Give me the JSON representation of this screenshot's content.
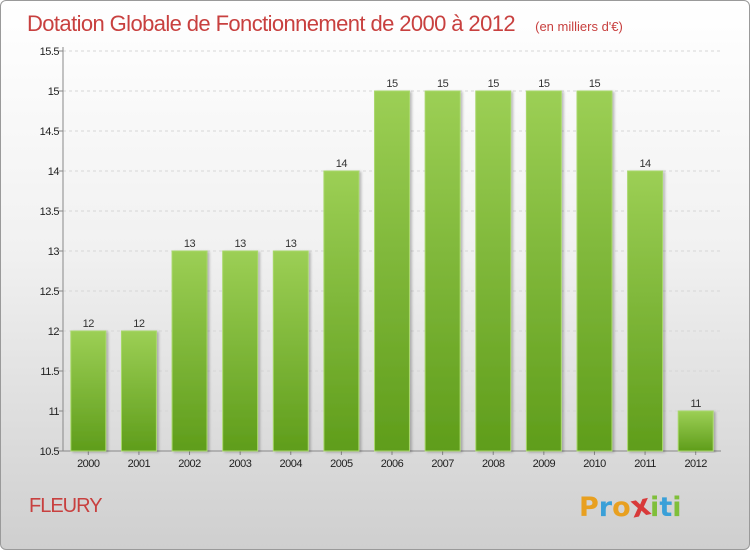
{
  "chart_data": {
    "type": "bar",
    "title": "Dotation Globale de Fonctionnement de 2000 à 2012",
    "subtitle": "(en milliers d'€)",
    "categories": [
      "2000",
      "2001",
      "2002",
      "2003",
      "2004",
      "2005",
      "2006",
      "2007",
      "2008",
      "2009",
      "2010",
      "2011",
      "2012"
    ],
    "values": [
      12,
      12,
      13,
      13,
      13,
      14,
      15,
      15,
      15,
      15,
      15,
      14,
      11
    ],
    "data_labels": [
      "12",
      "12",
      "13",
      "13",
      "13",
      "14",
      "15",
      "15",
      "15",
      "15",
      "15",
      "14",
      "11"
    ],
    "ylim": [
      10.5,
      15.5
    ],
    "yticks": [
      10.5,
      11,
      11.5,
      12,
      12.5,
      13,
      13.5,
      14,
      14.5,
      15,
      15.5
    ],
    "ytick_labels": [
      "10.5",
      "11",
      "11.5",
      "12",
      "12.5",
      "13",
      "13.5",
      "14",
      "14.5",
      "15",
      "15.5"
    ],
    "grid": true,
    "bar_color": "#7fbf3a",
    "xlabel": "",
    "ylabel": ""
  },
  "place_name": "FLEURY",
  "brand": {
    "letters": [
      "P",
      "r",
      "o",
      "x",
      "i",
      "t",
      "i"
    ],
    "colors": [
      "#e8a020",
      "#3aa0d8",
      "#e8a020",
      "#d83a3a",
      "#7fbf3a",
      "#3aa0d8",
      "#7fbf3a"
    ]
  }
}
